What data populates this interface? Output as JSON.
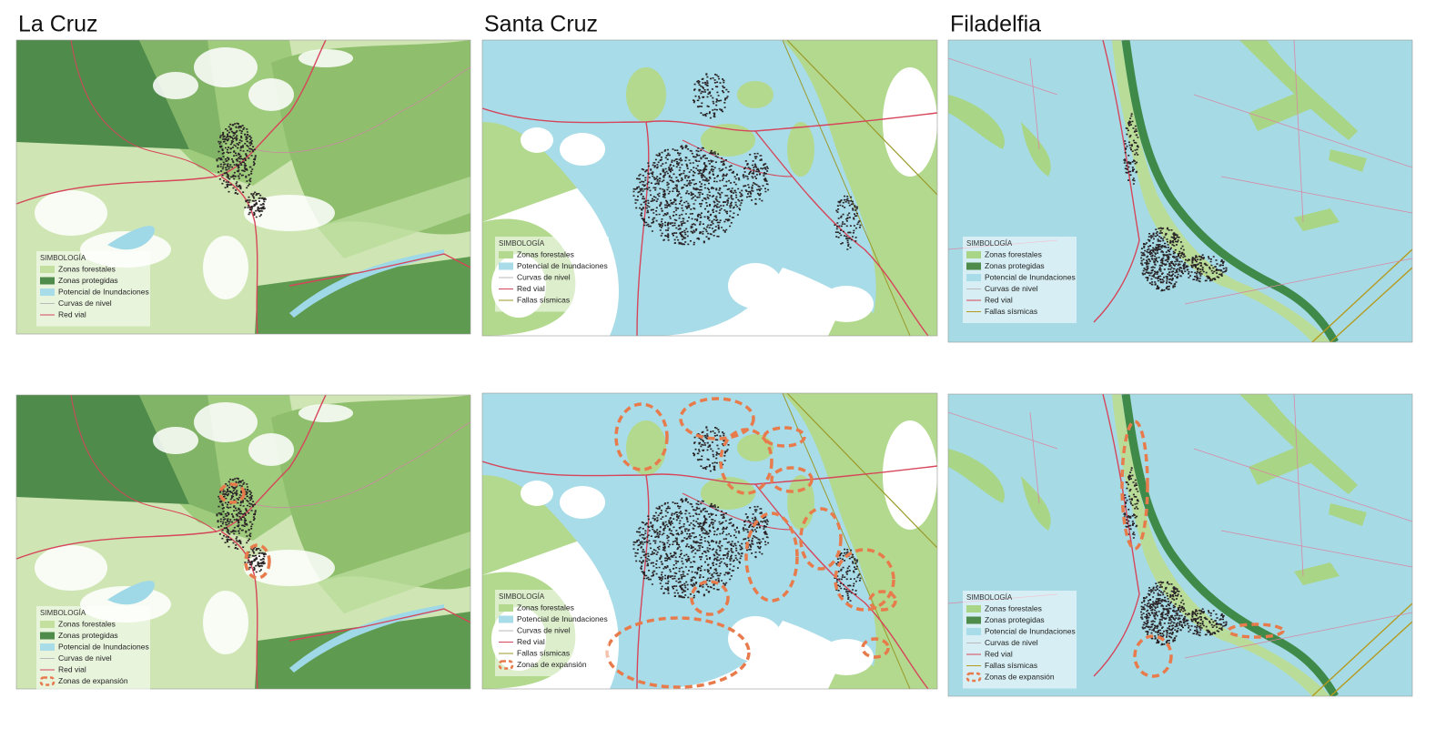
{
  "columns": [
    {
      "title": "La Cruz",
      "maps": [
        {
          "legend": {
            "title": "SIMBOLOGÍA",
            "items": [
              {
                "label": "Zonas forestales",
                "symbol": "fill",
                "color": "#c3e09f"
              },
              {
                "label": "Zonas protegidas",
                "symbol": "fill",
                "color": "#4f8b4b"
              },
              {
                "label": "Potencial de Inundaciones",
                "symbol": "fill",
                "color": "#a8dce8"
              },
              {
                "label": "Curvas de nivel",
                "symbol": "line",
                "color": "#b9b9b9"
              },
              {
                "label": "Red vial",
                "symbol": "line",
                "color": "#d6455a"
              }
            ]
          }
        },
        {
          "legend": {
            "title": "SIMBOLOGÍA",
            "items": [
              {
                "label": "Zonas forestales",
                "symbol": "fill",
                "color": "#c3e09f"
              },
              {
                "label": "Zonas protegidas",
                "symbol": "fill",
                "color": "#4f8b4b"
              },
              {
                "label": "Potencial de Inundaciones",
                "symbol": "fill",
                "color": "#a8dce8"
              },
              {
                "label": "Curvas de nivel",
                "symbol": "line",
                "color": "#b9b9b9"
              },
              {
                "label": "Red vial",
                "symbol": "line",
                "color": "#d6455a"
              },
              {
                "label": "Zonas de expansión",
                "symbol": "dash",
                "color": "#e87b4c"
              }
            ]
          }
        }
      ]
    },
    {
      "title": "Santa Cruz",
      "maps": [
        {
          "legend": {
            "title": "SIMBOLOGÍA",
            "items": [
              {
                "label": "Zonas forestales",
                "symbol": "fill",
                "color": "#b3d98f"
              },
              {
                "label": "Potencial de Inundaciones",
                "symbol": "fill",
                "color": "#a8dce8"
              },
              {
                "label": "Curvas de nivel",
                "symbol": "line",
                "color": "#b9b9b9"
              },
              {
                "label": "Red vial",
                "symbol": "line",
                "color": "#d6455a"
              },
              {
                "label": "Fallas sísmicas",
                "symbol": "line",
                "color": "#9a9a2a"
              }
            ]
          }
        },
        {
          "legend": {
            "title": "SIMBOLOGÍA",
            "items": [
              {
                "label": "Zonas forestales",
                "symbol": "fill",
                "color": "#b3d98f"
              },
              {
                "label": "Potencial de Inundaciones",
                "symbol": "fill",
                "color": "#a8dce8"
              },
              {
                "label": "Curvas de nivel",
                "symbol": "line",
                "color": "#b9b9b9"
              },
              {
                "label": "Red vial",
                "symbol": "line",
                "color": "#d6455a"
              },
              {
                "label": "Fallas sísmicas",
                "symbol": "line",
                "color": "#9a9a2a"
              },
              {
                "label": "Zonas de expansión",
                "symbol": "dash",
                "color": "#e87b4c"
              }
            ]
          }
        }
      ]
    },
    {
      "title": "Filadelfia",
      "maps": [
        {
          "legend": {
            "title": "SIMBOLOGÍA",
            "items": [
              {
                "label": "Zonas forestales",
                "symbol": "fill",
                "color": "#a9d586"
              },
              {
                "label": "Zonas protegidas",
                "symbol": "fill",
                "color": "#4f8b4b"
              },
              {
                "label": "Potencial de Inundaciones",
                "symbol": "fill",
                "color": "#a8dce8"
              },
              {
                "label": "Curvas de nivel",
                "symbol": "line",
                "color": "#b9b9b9"
              },
              {
                "label": "Red vial",
                "symbol": "line",
                "color": "#d6455a"
              },
              {
                "label": "Fallas sísmicas",
                "symbol": "line",
                "color": "#b59a1f"
              }
            ]
          }
        },
        {
          "legend": {
            "title": "SIMBOLOGÍA",
            "items": [
              {
                "label": "Zonas forestales",
                "symbol": "fill",
                "color": "#a9d586"
              },
              {
                "label": "Zonas protegidas",
                "symbol": "fill",
                "color": "#4f8b4b"
              },
              {
                "label": "Potencial de Inundaciones",
                "symbol": "fill",
                "color": "#a8dce8"
              },
              {
                "label": "Curvas de nivel",
                "symbol": "line",
                "color": "#b9b9b9"
              },
              {
                "label": "Red vial",
                "symbol": "line",
                "color": "#d6455a"
              },
              {
                "label": "Fallas sísmicas",
                "symbol": "line",
                "color": "#b59a1f"
              },
              {
                "label": "Zonas de expansión",
                "symbol": "dash",
                "color": "#e87b4c"
              }
            ]
          }
        }
      ]
    }
  ]
}
